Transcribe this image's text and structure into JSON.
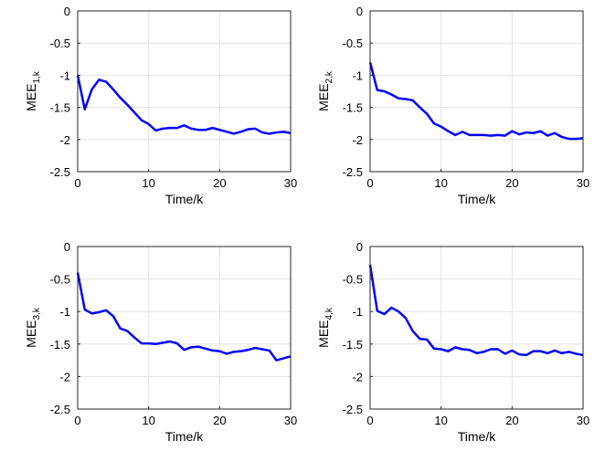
{
  "chart_data": [
    {
      "type": "line",
      "xlabel": "Time/k",
      "ylabel": "MEE",
      "ylabel_sub": "1,k",
      "color": "#0000ff",
      "grid": true,
      "x": [
        0,
        1,
        2,
        3,
        4,
        5,
        6,
        7,
        8,
        9,
        10,
        11,
        12,
        13,
        14,
        15,
        16,
        17,
        18,
        19,
        20,
        21,
        22,
        23,
        24,
        25,
        26,
        27,
        28,
        29,
        30
      ],
      "values": [
        -1.0,
        -1.53,
        -1.22,
        -1.07,
        -1.1,
        -1.22,
        -1.35,
        -1.46,
        -1.58,
        -1.7,
        -1.76,
        -1.86,
        -1.83,
        -1.82,
        -1.82,
        -1.78,
        -1.83,
        -1.85,
        -1.85,
        -1.82,
        -1.85,
        -1.88,
        -1.91,
        -1.88,
        -1.84,
        -1.83,
        -1.89,
        -1.91,
        -1.89,
        -1.88,
        -1.9
      ],
      "xlim": [
        0,
        30
      ],
      "xticks": [
        0,
        10,
        20,
        30
      ],
      "ylim": [
        -2.5,
        0
      ],
      "yticks": [
        0,
        -0.5,
        -1,
        -1.5,
        -2,
        -2.5
      ]
    },
    {
      "type": "line",
      "xlabel": "Time/k",
      "ylabel": "MEE",
      "ylabel_sub": "2,k",
      "color": "#0000ff",
      "grid": true,
      "x": [
        0,
        1,
        2,
        3,
        4,
        5,
        6,
        7,
        8,
        9,
        10,
        11,
        12,
        13,
        14,
        15,
        16,
        17,
        18,
        19,
        20,
        21,
        22,
        23,
        24,
        25,
        26,
        27,
        28,
        29,
        30
      ],
      "values": [
        -0.8,
        -1.23,
        -1.25,
        -1.3,
        -1.36,
        -1.37,
        -1.39,
        -1.5,
        -1.6,
        -1.75,
        -1.8,
        -1.87,
        -1.93,
        -1.88,
        -1.93,
        -1.93,
        -1.93,
        -1.94,
        -1.93,
        -1.94,
        -1.87,
        -1.92,
        -1.89,
        -1.9,
        -1.87,
        -1.94,
        -1.9,
        -1.96,
        -1.99,
        -1.99,
        -1.98
      ],
      "xlim": [
        0,
        30
      ],
      "xticks": [
        0,
        10,
        20,
        30
      ],
      "ylim": [
        -2.5,
        0
      ],
      "yticks": [
        0,
        -0.5,
        -1,
        -1.5,
        -2,
        -2.5
      ]
    },
    {
      "type": "line",
      "xlabel": "Time/k",
      "ylabel": "MEE",
      "ylabel_sub": "3,k",
      "color": "#0000ff",
      "grid": true,
      "x": [
        0,
        1,
        2,
        3,
        4,
        5,
        6,
        7,
        8,
        9,
        10,
        11,
        12,
        13,
        14,
        15,
        16,
        17,
        18,
        19,
        20,
        21,
        22,
        23,
        24,
        25,
        26,
        27,
        28,
        29,
        30
      ],
      "values": [
        -0.4,
        -0.97,
        -1.03,
        -1.01,
        -0.98,
        -1.07,
        -1.26,
        -1.3,
        -1.4,
        -1.49,
        -1.49,
        -1.5,
        -1.48,
        -1.46,
        -1.49,
        -1.59,
        -1.55,
        -1.54,
        -1.57,
        -1.6,
        -1.61,
        -1.65,
        -1.62,
        -1.61,
        -1.59,
        -1.56,
        -1.58,
        -1.6,
        -1.75,
        -1.72,
        -1.69
      ],
      "xlim": [
        0,
        30
      ],
      "xticks": [
        0,
        10,
        20,
        30
      ],
      "ylim": [
        -2.5,
        0
      ],
      "yticks": [
        0,
        -0.5,
        -1,
        -1.5,
        -2,
        -2.5
      ]
    },
    {
      "type": "line",
      "xlabel": "Time/k",
      "ylabel": "MEE",
      "ylabel_sub": "4,k",
      "color": "#0000ff",
      "grid": true,
      "x": [
        0,
        1,
        2,
        3,
        4,
        5,
        6,
        7,
        8,
        9,
        10,
        11,
        12,
        13,
        14,
        15,
        16,
        17,
        18,
        19,
        20,
        21,
        22,
        23,
        24,
        25,
        26,
        27,
        28,
        29,
        30
      ],
      "values": [
        -0.28,
        -0.99,
        -1.04,
        -0.94,
        -1.0,
        -1.1,
        -1.3,
        -1.42,
        -1.43,
        -1.57,
        -1.58,
        -1.61,
        -1.55,
        -1.58,
        -1.59,
        -1.64,
        -1.62,
        -1.58,
        -1.58,
        -1.65,
        -1.6,
        -1.66,
        -1.67,
        -1.61,
        -1.61,
        -1.64,
        -1.6,
        -1.64,
        -1.62,
        -1.65,
        -1.67
      ],
      "xlim": [
        0,
        30
      ],
      "xticks": [
        0,
        10,
        20,
        30
      ],
      "ylim": [
        -2.5,
        0
      ],
      "yticks": [
        0,
        -0.5,
        -1,
        -1.5,
        -2,
        -2.5
      ]
    }
  ]
}
